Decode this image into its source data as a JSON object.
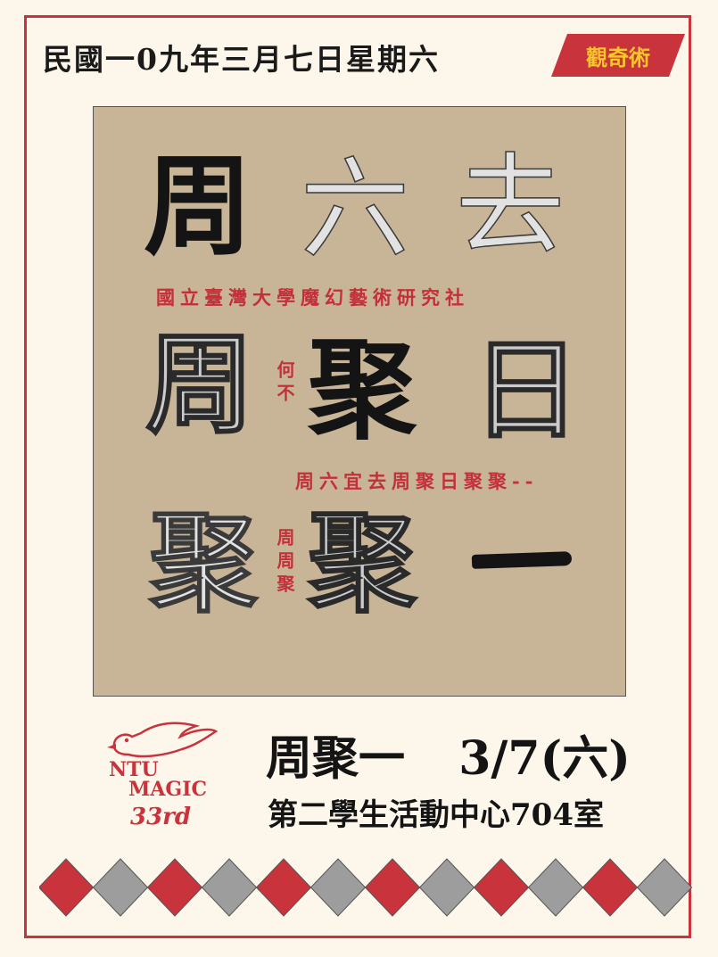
{
  "header": {
    "date": "民國一0九年三月七日星期六",
    "tag": "觀奇術"
  },
  "poster": {
    "grid": {
      "r1": [
        "周",
        "六",
        "去"
      ],
      "r2": [
        "周",
        "聚",
        "日"
      ],
      "r3": [
        "聚",
        "聚"
      ]
    },
    "club_line": "國立臺灣大學魔幻藝術研究社",
    "side_left_mid": "何不",
    "slogan": "周六宜去周聚日聚聚--",
    "side_left_bottom": "周周聚"
  },
  "logo": {
    "line1": "NTU",
    "line2": "MAGIC",
    "line3": "33rd"
  },
  "event": {
    "title": "周聚一",
    "date": "3/7(六)",
    "location": "第二學生活動中心704室"
  },
  "colors": {
    "red": "#c8333c",
    "gold": "#f6c62c",
    "paper": "#fdf6ea",
    "panel": "#c8b497",
    "grey": "#9d9d9d"
  }
}
